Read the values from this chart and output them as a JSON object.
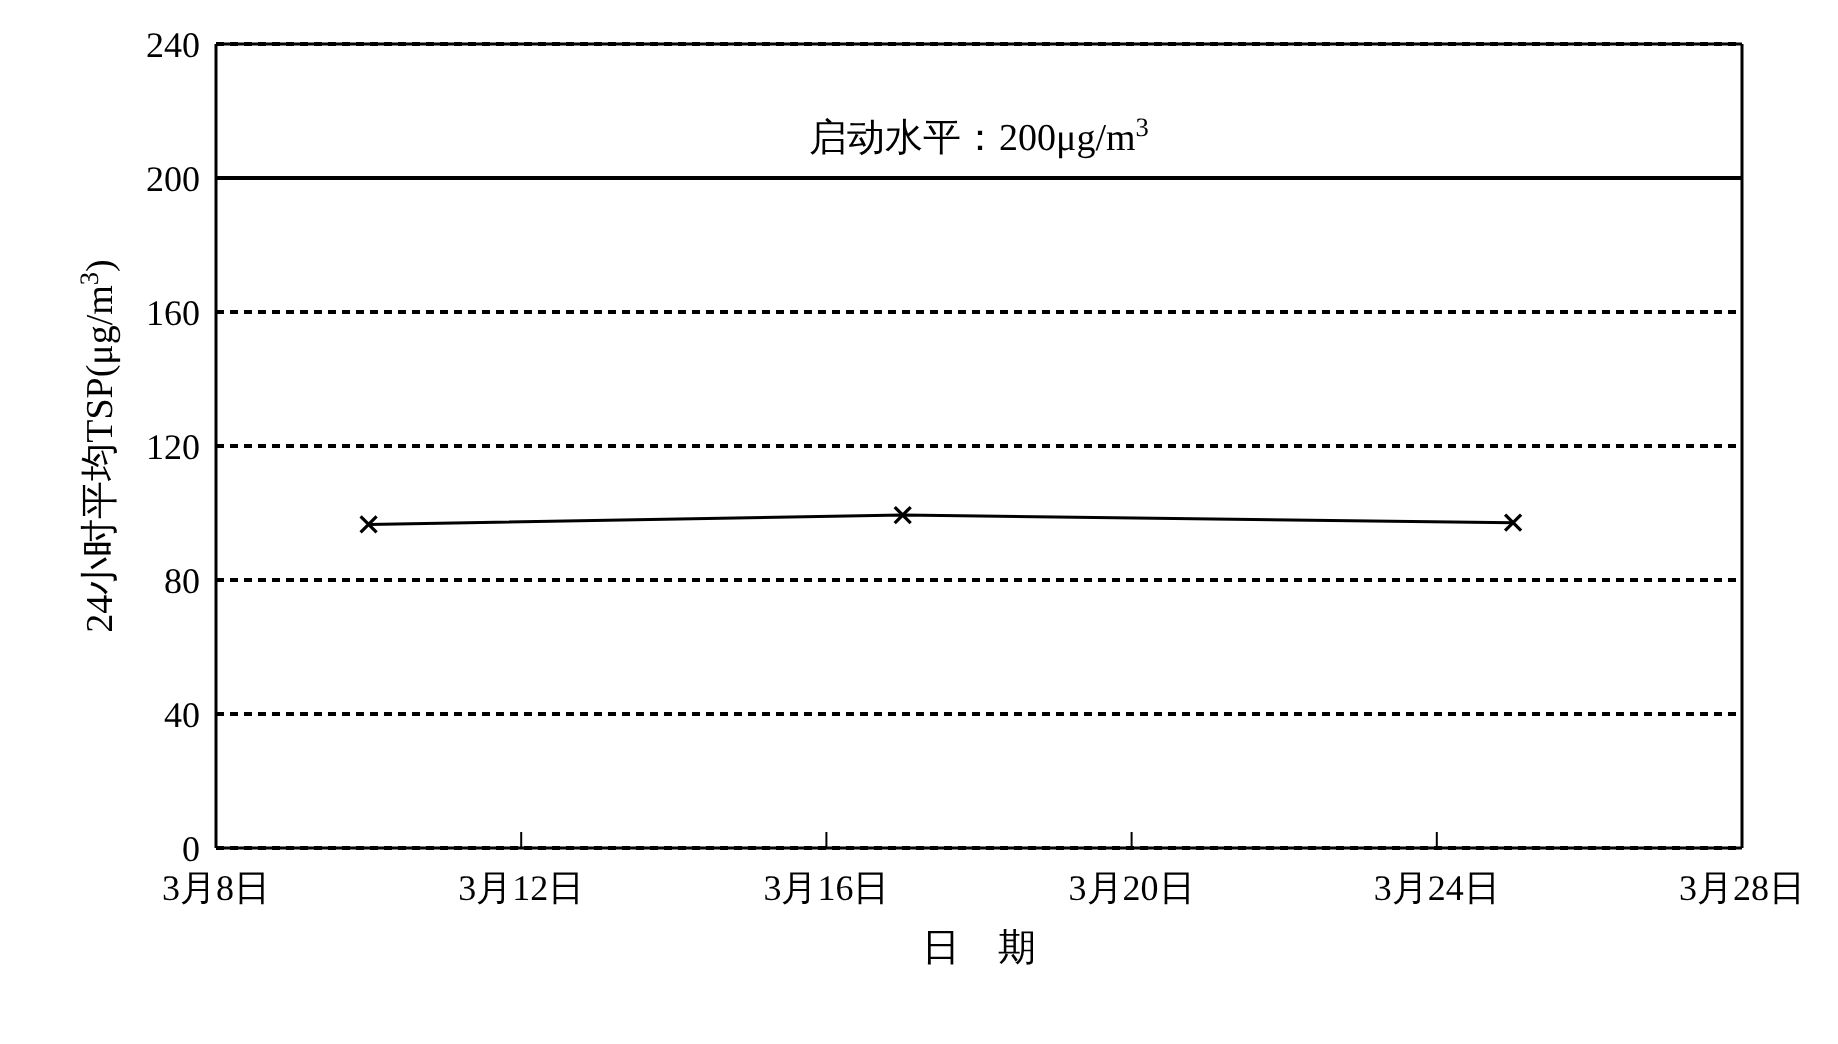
{
  "chart_data": {
    "type": "line",
    "xlabel": "日　期",
    "ylabel": "24小时平均TSP(μg/m$^{3}$)",
    "x": [
      "--03-10",
      "--03-17",
      "--03-25"
    ],
    "series": [
      {
        "color": "#000000",
        "values": [
          96.6,
          99.4,
          97.1
        ]
      }
    ],
    "xlim": [
      "--03-08",
      "--03-28"
    ],
    "xticks": [
      {
        "value": "--03-08",
        "label": "3月8日"
      },
      {
        "value": "--03-12",
        "label": "3月12日"
      },
      {
        "value": "--03-16",
        "label": "3月16日"
      },
      {
        "value": "--03-20",
        "label": "3月20日"
      },
      {
        "value": "--03-24",
        "label": "3月24日"
      },
      {
        "value": "--03-28",
        "label": "3月28日"
      }
    ],
    "ylim": [
      0,
      240
    ],
    "yticks": [
      0,
      40,
      80,
      120,
      160,
      200,
      240
    ],
    "ref_lines": [
      {
        "axis": "y",
        "value": 200,
        "label": "启动水平：200μg/m$^{3}$",
        "color": "#000000",
        "line_style": "solid"
      }
    ],
    "grid": "y",
    "legend": false,
    "marker": "cross",
    "line_style": "solid"
  }
}
